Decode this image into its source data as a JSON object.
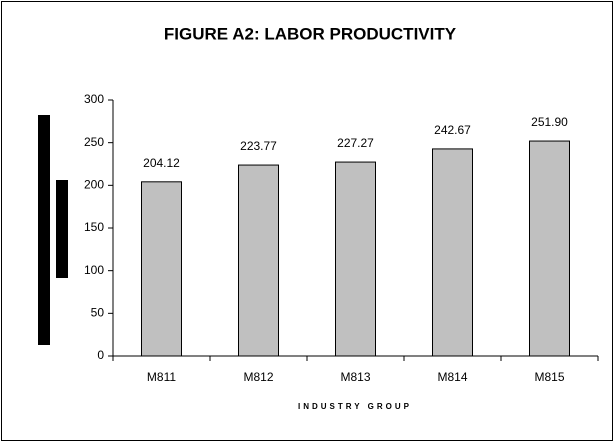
{
  "chart_data": {
    "type": "bar",
    "title": "FIGURE A2: LABOR PRODUCTIVITY",
    "x_label": "INDUSTRY GROUP",
    "categories": [
      "M811",
      "M812",
      "M813",
      "M814",
      "M815"
    ],
    "values": [
      204.12,
      223.77,
      227.27,
      242.67,
      251.9
    ],
    "value_labels": [
      "204.12",
      "223.77",
      "227.27",
      "242.67",
      "251.90"
    ],
    "color": "#c0c0c0",
    "ylim": [
      0,
      300
    ],
    "yticks": [
      0,
      50,
      100,
      150,
      200,
      250,
      300
    ],
    "grid": false
  }
}
